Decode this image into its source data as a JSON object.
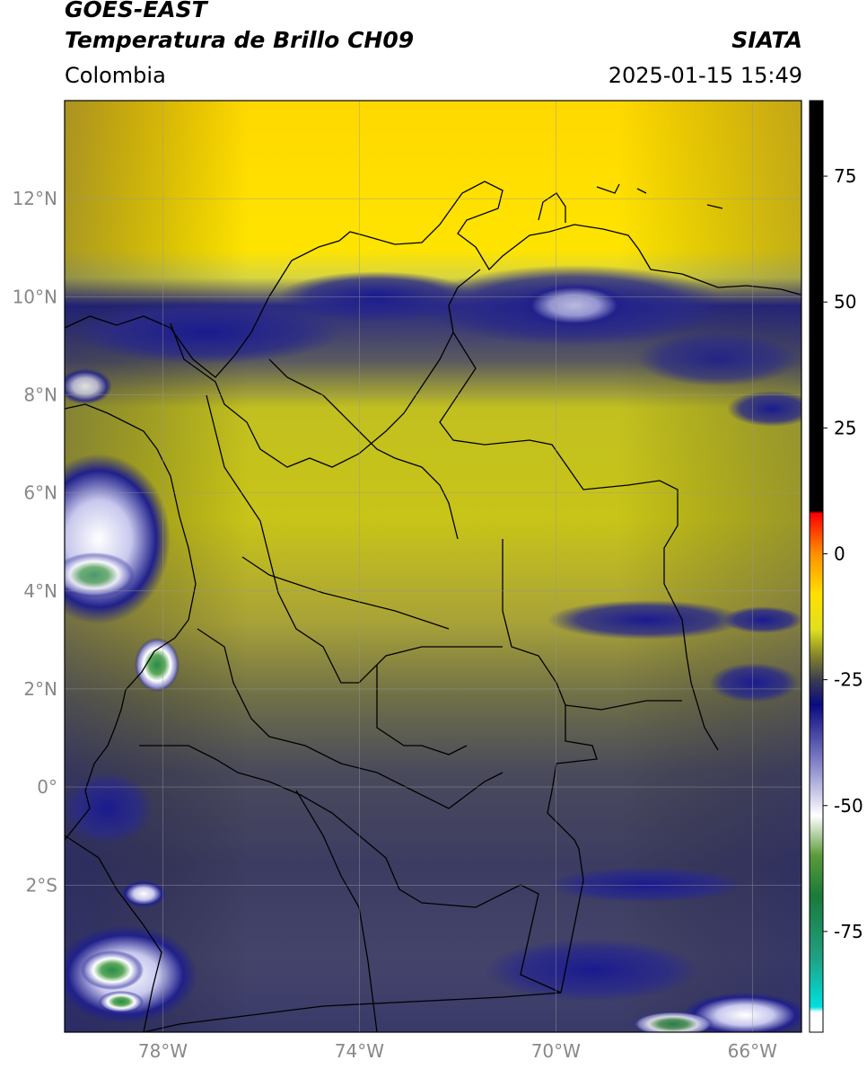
{
  "header": {
    "satellite": "GOES-EAST",
    "product": "Temperatura de Brillo CH09",
    "organization": "SIATA",
    "region": "Colombia",
    "timestamp": "2025-01-15 15:49"
  },
  "map": {
    "lon_range": [
      -80,
      -65
    ],
    "lat_range": [
      -5,
      14
    ],
    "lat_ticks": [
      {
        "value": 12,
        "label": "12°N"
      },
      {
        "value": 10,
        "label": "10°N"
      },
      {
        "value": 8,
        "label": "8°N"
      },
      {
        "value": 6,
        "label": "6°N"
      },
      {
        "value": 4,
        "label": "4°N"
      },
      {
        "value": 2,
        "label": "2°N"
      },
      {
        "value": 0,
        "label": "0°"
      },
      {
        "value": -2,
        "label": "2°S"
      }
    ],
    "lon_ticks": [
      {
        "value": -78,
        "label": "78°W"
      },
      {
        "value": -74,
        "label": "74°W"
      },
      {
        "value": -70,
        "label": "70°W"
      },
      {
        "value": -66,
        "label": "66°W"
      }
    ],
    "gridlines": true
  },
  "colorbar": {
    "range": [
      -95,
      90
    ],
    "ticks": [
      {
        "value": 75,
        "label": "75"
      },
      {
        "value": 50,
        "label": "50"
      },
      {
        "value": 25,
        "label": "25"
      },
      {
        "value": 0,
        "label": "0"
      },
      {
        "value": -25,
        "label": "-25"
      },
      {
        "value": -50,
        "label": "-50"
      },
      {
        "value": -75,
        "label": "-75"
      }
    ],
    "stops": [
      {
        "value": -95,
        "color": "#ffffff"
      },
      {
        "value": -91,
        "color": "#ffffff"
      },
      {
        "value": -90,
        "color": "#00e0e0"
      },
      {
        "value": -80,
        "color": "#20a080"
      },
      {
        "value": -68,
        "color": "#1a7a3a"
      },
      {
        "value": -60,
        "color": "#5a9a3a"
      },
      {
        "value": -52,
        "color": "#ffffff"
      },
      {
        "value": -42,
        "color": "#8888cc"
      },
      {
        "value": -30,
        "color": "#0a0a80"
      },
      {
        "value": -25,
        "color": "#3c3c50"
      },
      {
        "value": -20,
        "color": "#88882a"
      },
      {
        "value": -15,
        "color": "#e0e020"
      },
      {
        "value": -8,
        "color": "#ffe000"
      },
      {
        "value": 0,
        "color": "#ff9000"
      },
      {
        "value": 8,
        "color": "#ff0000"
      },
      {
        "value": 8.5,
        "color": "#000000"
      },
      {
        "value": 90,
        "color": "#000000"
      }
    ]
  }
}
